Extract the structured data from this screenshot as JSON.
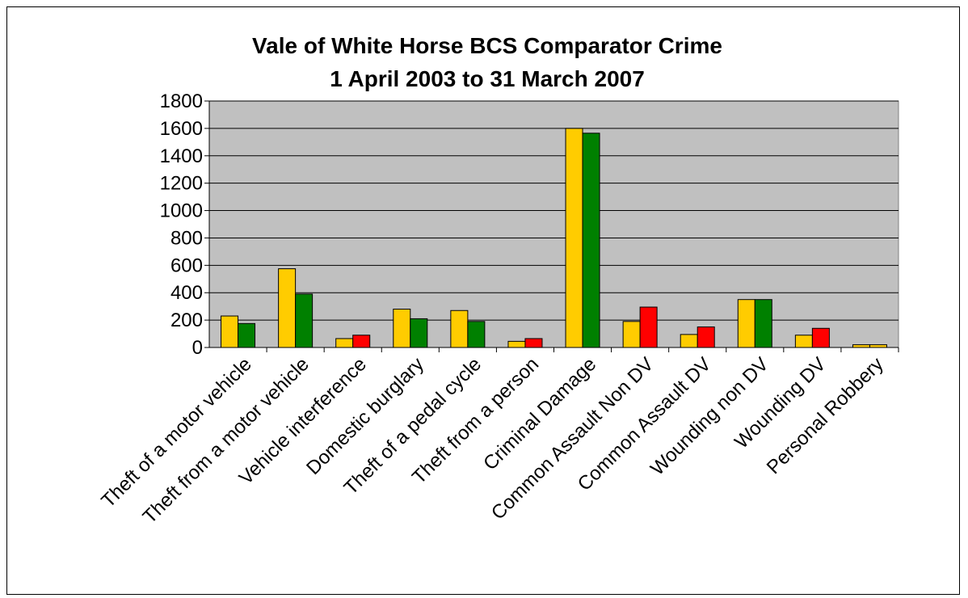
{
  "chart_data": {
    "type": "bar",
    "title_line1": "Vale of White Horse BCS Comparator Crime",
    "title_line2": "1 April 2003 to 31 March 2007",
    "xlabel": "",
    "ylabel": "",
    "ylim": [
      0,
      1800
    ],
    "yticks": [
      "0",
      "200",
      "400",
      "600",
      "800",
      "1000",
      "1200",
      "1400",
      "1600",
      "1800"
    ],
    "grid": true,
    "plot_background": "#c0c0c0",
    "categories": [
      "Theft of a motor vehicle",
      "Theft from a motor vehicle",
      "Vehicle interference",
      "Domestic burglary",
      "Theft of a pedal cycle",
      "Theft from a person",
      "Criminal Damage",
      "Common Assault Non DV",
      "Common Assault DV",
      "Wounding non DV",
      "Wounding DV",
      "Personal Robbery"
    ],
    "series": [
      {
        "values": [
          230,
          575,
          65,
          280,
          270,
          45,
          1600,
          190,
          95,
          350,
          90,
          20
        ],
        "colors": [
          "#ffcc00",
          "#ffcc00",
          "#ffcc00",
          "#ffcc00",
          "#ffcc00",
          "#ffcc00",
          "#ffcc00",
          "#ffcc00",
          "#ffcc00",
          "#ffcc00",
          "#ffcc00",
          "#ffcc00"
        ]
      },
      {
        "values": [
          175,
          390,
          90,
          210,
          190,
          65,
          1565,
          295,
          150,
          350,
          140,
          20
        ],
        "colors": [
          "#008000",
          "#008000",
          "#ff0000",
          "#008000",
          "#008000",
          "#ff0000",
          "#008000",
          "#ff0000",
          "#ff0000",
          "#008000",
          "#ff0000",
          "#ffcc00"
        ]
      }
    ]
  }
}
